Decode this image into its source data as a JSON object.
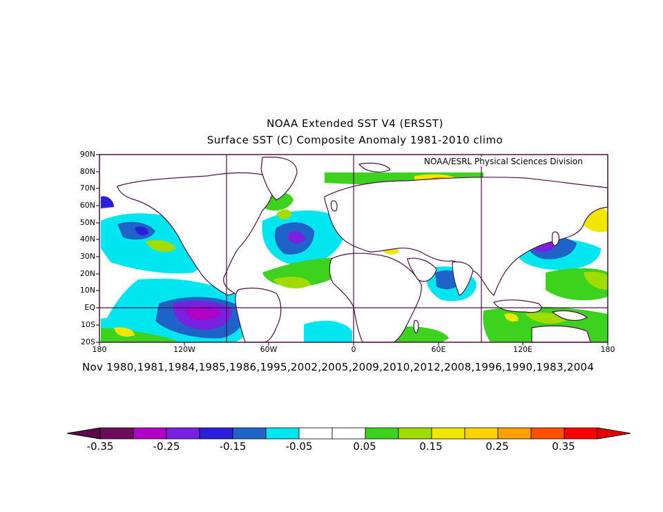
{
  "title_line1": "NOAA Extended SST V4 (ERSST)",
  "title_line2": "Surface SST (C) Composite Anomaly 1981-2010 climo",
  "credit": "NOAA/ESRL Physical Sciences Division",
  "lat_labels": [
    "90N",
    "80N",
    "70N",
    "60N",
    "50N",
    "40N",
    "30N",
    "20N",
    "10N",
    "EQ",
    "10S",
    "20S"
  ],
  "lon_labels": [
    "180",
    "120W",
    "60W",
    "0",
    "60E",
    "120E",
    "180"
  ],
  "composite_years": "Nov 1980,1981,1984,1985,1986,1995,2002,2005,2009,2010,2012,2008,1996,1990,1983,2004",
  "colorbar": {
    "labels": [
      "-0.35",
      "-0.25",
      "-0.15",
      "-0.05",
      "0.05",
      "0.15",
      "0.25",
      "0.35"
    ],
    "colors": [
      "#6e0a5a",
      "#b000c8",
      "#7a20e0",
      "#2d1ed8",
      "#1e64c8",
      "#00e6f0",
      "#ffffff",
      "#ffffff",
      "#3cd21e",
      "#a0dc00",
      "#f0e600",
      "#ffd200",
      "#ffa000",
      "#ff5000",
      "#ff0000"
    ],
    "low_color": "#5a0a46",
    "high_color": "#e60000"
  }
}
